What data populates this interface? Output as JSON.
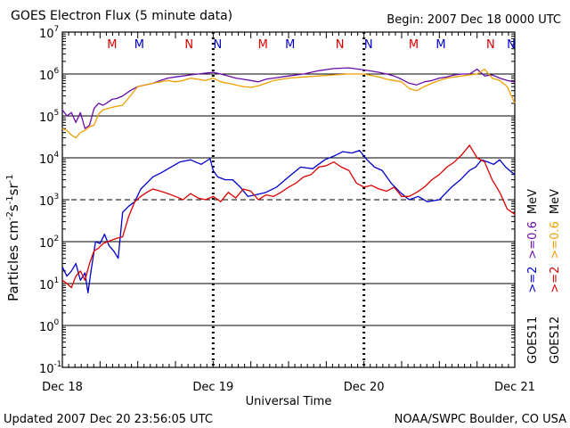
{
  "header": {
    "title": "GOES Electron Flux (5 minute data)",
    "begin": "Begin: 2007 Dec 18 0000 UTC"
  },
  "footer": {
    "updated": "Updated 2007 Dec 20 23:56:05 UTC",
    "credit": "NOAA/SWPC Boulder, CO USA"
  },
  "colors": {
    "goes11_gt2": "#0000cc",
    "goes11_gt06": "#6a0dad",
    "goes12_gt2": "#dd0000",
    "goes12_gt06": "#f0a000",
    "marker_m": "#dd0000",
    "marker_n": "#0000cc"
  },
  "chart_data": {
    "type": "line",
    "title": "GOES Electron Flux (5 minute data)",
    "xlabel": "Universal Time",
    "ylabel_prefix": "Particles cm",
    "ylabel_parts": [
      "Particles cm",
      "-2",
      "s",
      "-1",
      "sr",
      "-1"
    ],
    "x_unit": "days since 2007 Dec 18 0000 UTC",
    "xlim": [
      0,
      3
    ],
    "x_ticks": [
      {
        "x": 0,
        "label": "Dec 18"
      },
      {
        "x": 1,
        "label": "Dec 19"
      },
      {
        "x": 2,
        "label": "Dec 20"
      },
      {
        "x": 3,
        "label": "Dec 21"
      }
    ],
    "y_scale": "log",
    "ylim_exp": [
      -1,
      7
    ],
    "y_ticks": [
      {
        "exp": 7,
        "base": "10",
        "sup": "7"
      },
      {
        "exp": 6,
        "base": "10",
        "sup": "6"
      },
      {
        "exp": 5,
        "base": "10",
        "sup": "5"
      },
      {
        "exp": 4,
        "base": "10",
        "sup": "4"
      },
      {
        "exp": 3,
        "base": "10",
        "sup": "3"
      },
      {
        "exp": 2,
        "base": "10",
        "sup": "2"
      },
      {
        "exp": 1,
        "base": "10",
        "sup": "1"
      },
      {
        "exp": 0,
        "base": "10",
        "sup": "0"
      },
      {
        "exp": -1,
        "base": "10",
        "sup": "-1"
      }
    ],
    "threshold_exp": 3,
    "legend": {
      "placement": "right",
      "groups": [
        {
          "sat": "GOES11",
          "items": [
            {
              "text": ">=2",
              "color": "#0000cc"
            },
            {
              "text": ">=0.6",
              "color": "#6a0dad"
            },
            {
              "text": "MeV",
              "color": "#000000"
            }
          ]
        },
        {
          "sat": "GOES12",
          "items": [
            {
              "text": ">=2",
              "color": "#dd0000"
            },
            {
              "text": ">=0.6",
              "color": "#f0a000"
            },
            {
              "text": "MeV",
              "color": "#000000"
            }
          ]
        }
      ]
    },
    "markers": [
      {
        "x": 0.33,
        "label": "M",
        "color": "#dd0000"
      },
      {
        "x": 0.51,
        "label": "M",
        "color": "#0000cc"
      },
      {
        "x": 0.84,
        "label": "N",
        "color": "#dd0000"
      },
      {
        "x": 1.03,
        "label": "N",
        "color": "#0000cc"
      },
      {
        "x": 1.33,
        "label": "M",
        "color": "#dd0000"
      },
      {
        "x": 1.51,
        "label": "M",
        "color": "#0000cc"
      },
      {
        "x": 1.84,
        "label": "N",
        "color": "#dd0000"
      },
      {
        "x": 2.03,
        "label": "N",
        "color": "#0000cc"
      },
      {
        "x": 2.33,
        "label": "M",
        "color": "#dd0000"
      },
      {
        "x": 2.51,
        "label": "M",
        "color": "#0000cc"
      },
      {
        "x": 2.84,
        "label": "N",
        "color": "#dd0000"
      },
      {
        "x": 3.03,
        "label": "N",
        "color": "#0000cc"
      }
    ],
    "midnight_markers_x": [
      1,
      2
    ],
    "series": [
      {
        "name": "GOES11 >=2 MeV",
        "color": "#0000cc",
        "x": [
          0,
          0.03,
          0.06,
          0.09,
          0.12,
          0.15,
          0.17,
          0.19,
          0.22,
          0.25,
          0.28,
          0.31,
          0.34,
          0.37,
          0.4,
          0.44,
          0.48,
          0.52,
          0.56,
          0.6,
          0.66,
          0.72,
          0.78,
          0.85,
          0.92,
          0.98,
          1.0,
          1.03,
          1.08,
          1.13,
          1.18,
          1.23,
          1.28,
          1.35,
          1.42,
          1.5,
          1.58,
          1.66,
          1.74,
          1.8,
          1.86,
          1.92,
          1.97,
          2.02,
          2.07,
          2.12,
          2.18,
          2.24,
          2.3,
          2.36,
          2.42,
          2.5,
          2.58,
          2.64,
          2.7,
          2.74,
          2.78,
          2.82,
          2.86,
          2.9,
          2.94,
          2.98,
          3.0
        ],
        "y": [
          25,
          15,
          20,
          30,
          12,
          18,
          6,
          20,
          100,
          90,
          150,
          80,
          60,
          40,
          500,
          700,
          900,
          1800,
          2500,
          3500,
          4500,
          6000,
          8000,
          9000,
          7000,
          9500,
          5000,
          3500,
          3000,
          3000,
          2000,
          1200,
          1300,
          1500,
          2000,
          3500,
          6000,
          5500,
          9000,
          11000,
          14000,
          13000,
          15000,
          9000,
          6000,
          5000,
          2500,
          1500,
          1000,
          1200,
          900,
          1000,
          2000,
          3000,
          5000,
          6000,
          9000,
          8000,
          7000,
          9000,
          6000,
          4500,
          4000
        ]
      },
      {
        "name": "GOES11 >=0.6 MeV",
        "color": "#6a0dad",
        "x": [
          0,
          0.03,
          0.06,
          0.09,
          0.12,
          0.15,
          0.18,
          0.21,
          0.24,
          0.27,
          0.3,
          0.33,
          0.36,
          0.4,
          0.45,
          0.5,
          0.55,
          0.6,
          0.65,
          0.7,
          0.75,
          0.8,
          0.85,
          0.9,
          0.95,
          1.0,
          1.05,
          1.1,
          1.15,
          1.2,
          1.25,
          1.3,
          1.35,
          1.4,
          1.5,
          1.6,
          1.7,
          1.8,
          1.9,
          2.0,
          2.1,
          2.15,
          2.2,
          2.25,
          2.3,
          2.35,
          2.4,
          2.45,
          2.5,
          2.55,
          2.6,
          2.65,
          2.7,
          2.75,
          2.8,
          2.85,
          2.9,
          2.95,
          3.0
        ],
        "y": [
          140000,
          100000,
          120000,
          70000,
          120000,
          50000,
          60000,
          150000,
          200000,
          180000,
          210000,
          250000,
          260000,
          300000,
          400000,
          500000,
          550000,
          600000,
          700000,
          800000,
          850000,
          900000,
          950000,
          1000000,
          1050000,
          1100000,
          1000000,
          900000,
          800000,
          750000,
          700000,
          650000,
          750000,
          800000,
          900000,
          1000000,
          1200000,
          1350000,
          1400000,
          1250000,
          1100000,
          1000000,
          900000,
          750000,
          600000,
          550000,
          650000,
          700000,
          800000,
          850000,
          950000,
          1000000,
          1000000,
          1300000,
          900000,
          950000,
          800000,
          700000,
          650000
        ]
      },
      {
        "name": "GOES12 >=2 MeV",
        "color": "#dd0000",
        "x": [
          0,
          0.03,
          0.06,
          0.09,
          0.12,
          0.15,
          0.18,
          0.21,
          0.24,
          0.27,
          0.3,
          0.33,
          0.36,
          0.4,
          0.44,
          0.48,
          0.52,
          0.56,
          0.6,
          0.65,
          0.7,
          0.75,
          0.8,
          0.85,
          0.9,
          0.95,
          1.0,
          1.05,
          1.1,
          1.15,
          1.2,
          1.25,
          1.3,
          1.35,
          1.4,
          1.45,
          1.5,
          1.55,
          1.6,
          1.65,
          1.7,
          1.75,
          1.8,
          1.85,
          1.9,
          1.95,
          2.0,
          2.05,
          2.1,
          2.15,
          2.2,
          2.25,
          2.3,
          2.35,
          2.4,
          2.45,
          2.5,
          2.55,
          2.6,
          2.65,
          2.7,
          2.75,
          2.8,
          2.85,
          2.9,
          2.95,
          3.0
        ],
        "y": [
          12,
          10,
          8,
          15,
          20,
          12,
          30,
          60,
          70,
          90,
          100,
          110,
          120,
          130,
          400,
          900,
          1200,
          1500,
          1800,
          1600,
          1400,
          1200,
          1000,
          1400,
          1100,
          1000,
          1200,
          900,
          1500,
          1100,
          1800,
          1600,
          1000,
          1300,
          1200,
          1500,
          2000,
          2500,
          3500,
          4000,
          6000,
          6500,
          8000,
          6000,
          5000,
          2500,
          2000,
          2200,
          1800,
          1600,
          2000,
          1200,
          1200,
          1500,
          2000,
          3000,
          4000,
          6000,
          8000,
          12000,
          20000,
          10000,
          8000,
          3000,
          1500,
          600,
          450
        ]
      },
      {
        "name": "GOES12 >=0.6 MeV",
        "color": "#f0a000",
        "x": [
          0,
          0.03,
          0.06,
          0.09,
          0.12,
          0.15,
          0.18,
          0.21,
          0.24,
          0.27,
          0.3,
          0.33,
          0.36,
          0.4,
          0.45,
          0.5,
          0.55,
          0.6,
          0.65,
          0.7,
          0.75,
          0.8,
          0.85,
          0.9,
          0.95,
          1.0,
          1.05,
          1.1,
          1.15,
          1.2,
          1.25,
          1.3,
          1.35,
          1.4,
          1.5,
          1.6,
          1.7,
          1.8,
          1.9,
          2.0,
          2.1,
          2.15,
          2.2,
          2.25,
          2.3,
          2.35,
          2.4,
          2.45,
          2.5,
          2.55,
          2.6,
          2.65,
          2.7,
          2.75,
          2.8,
          2.85,
          2.9,
          2.95,
          3.0
        ],
        "y": [
          50000,
          45000,
          35000,
          30000,
          40000,
          45000,
          55000,
          60000,
          110000,
          140000,
          150000,
          160000,
          170000,
          180000,
          300000,
          500000,
          550000,
          600000,
          650000,
          700000,
          650000,
          700000,
          800000,
          750000,
          700000,
          800000,
          650000,
          600000,
          550000,
          500000,
          480000,
          520000,
          600000,
          700000,
          800000,
          850000,
          900000,
          950000,
          1000000,
          1000000,
          850000,
          750000,
          700000,
          650000,
          450000,
          400000,
          500000,
          600000,
          700000,
          800000,
          850000,
          900000,
          950000,
          1000000,
          1300000,
          800000,
          700000,
          500000,
          200000
        ]
      }
    ]
  }
}
